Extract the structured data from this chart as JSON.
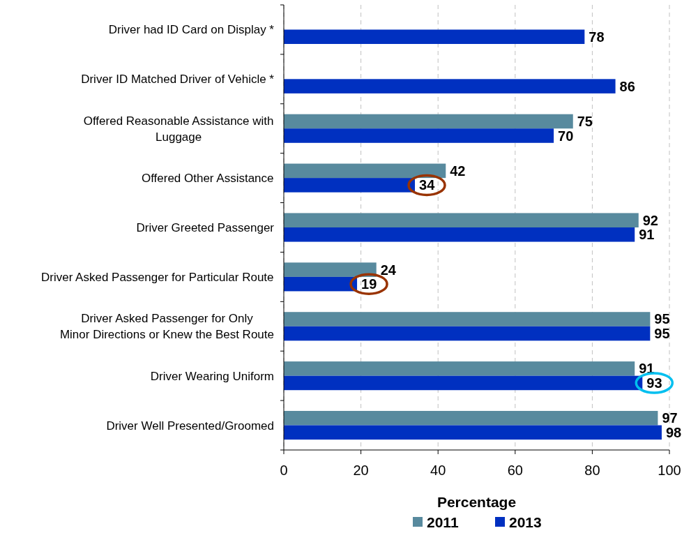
{
  "chart_data": {
    "type": "bar",
    "orientation": "horizontal",
    "xlabel": "Percentage",
    "categories": [
      "Driver had ID Card on Display *",
      "Driver ID Matched Driver of Vehicle *",
      "Offered Reasonable Assistance with\nLuggage",
      "Offered Other Assistance",
      "Driver Greeted Passenger",
      "Driver Asked Passenger for Particular Route",
      "Driver Asked Passenger for Only\nMinor Directions or Knew the Best Route",
      "Driver Wearing Uniform",
      "Driver Well Presented/Groomed"
    ],
    "series": [
      {
        "name": "2011",
        "color": "#588a9e",
        "values": [
          null,
          null,
          75,
          42,
          92,
          24,
          95,
          91,
          97
        ]
      },
      {
        "name": "2013",
        "color": "#0030c0",
        "values": [
          78,
          86,
          70,
          34,
          91,
          19,
          95,
          93,
          98
        ]
      }
    ],
    "xlim": [
      0,
      100
    ],
    "xticks": [
      0,
      20,
      40,
      60,
      80,
      100
    ],
    "grid": "x",
    "legend": "bottom",
    "data_labels": true
  }
}
